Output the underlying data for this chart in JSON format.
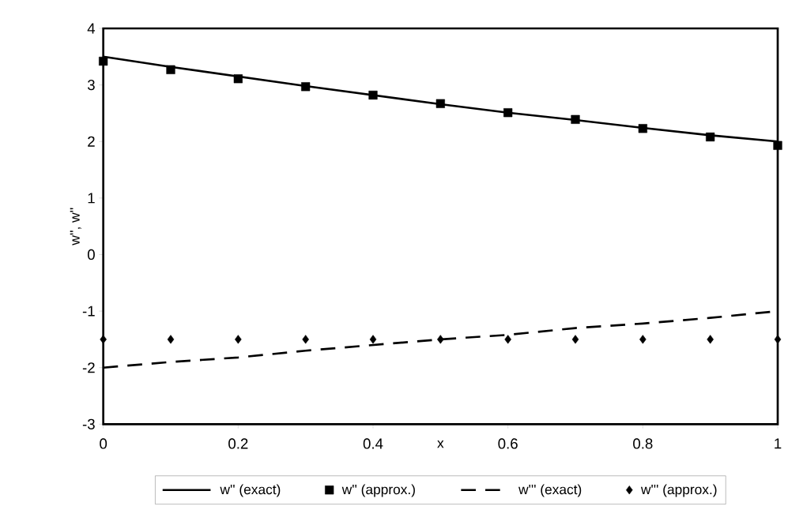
{
  "chart_data": {
    "type": "line",
    "xlabel": "x",
    "ylabel": "w'', w''",
    "xlim": [
      0,
      1
    ],
    "xticks": [
      0,
      0.2,
      0.4,
      0.6,
      0.8,
      1
    ],
    "ylim": [
      -3,
      4
    ],
    "yticks": [
      -3,
      -2,
      -1,
      0,
      1,
      2,
      3,
      4
    ],
    "grid": false,
    "legend": "bottom",
    "series": [
      {
        "name": "w'' (exact)",
        "type": "line",
        "color": "#000000",
        "marker": "none",
        "line_style": "solid",
        "x": [
          0,
          0.1,
          0.2,
          0.3,
          0.4,
          0.5,
          0.6,
          0.7,
          0.8,
          0.9,
          1
        ],
        "values": [
          3.5,
          3.32,
          3.15,
          2.98,
          2.82,
          2.66,
          2.51,
          2.38,
          2.24,
          2.11,
          2.0
        ]
      },
      {
        "name": "w'' (approx.)",
        "type": "scatter",
        "color": "#000000",
        "marker": "square",
        "x": [
          0,
          0.1,
          0.2,
          0.3,
          0.4,
          0.5,
          0.6,
          0.7,
          0.8,
          0.9,
          1
        ],
        "values": [
          3.42,
          3.27,
          3.11,
          2.97,
          2.82,
          2.67,
          2.51,
          2.39,
          2.23,
          2.08,
          1.93
        ]
      },
      {
        "name": "w''' (exact)",
        "type": "line",
        "color": "#000000",
        "marker": "none",
        "line_style": "dashed",
        "x": [
          0,
          0.1,
          0.2,
          0.3,
          0.4,
          0.5,
          0.6,
          0.7,
          0.8,
          0.9,
          1
        ],
        "values": [
          -2.0,
          -1.9,
          -1.82,
          -1.7,
          -1.6,
          -1.5,
          -1.42,
          -1.3,
          -1.22,
          -1.12,
          -1.0
        ]
      },
      {
        "name": "w''' (approx.)",
        "type": "scatter",
        "color": "#000000",
        "marker": "diamond",
        "x": [
          0,
          0.1,
          0.2,
          0.3,
          0.4,
          0.5,
          0.6,
          0.7,
          0.8,
          0.9,
          1
        ],
        "values": [
          -1.5,
          -1.5,
          -1.5,
          -1.5,
          -1.5,
          -1.5,
          -1.5,
          -1.5,
          -1.5,
          -1.5,
          -1.5
        ]
      }
    ]
  }
}
